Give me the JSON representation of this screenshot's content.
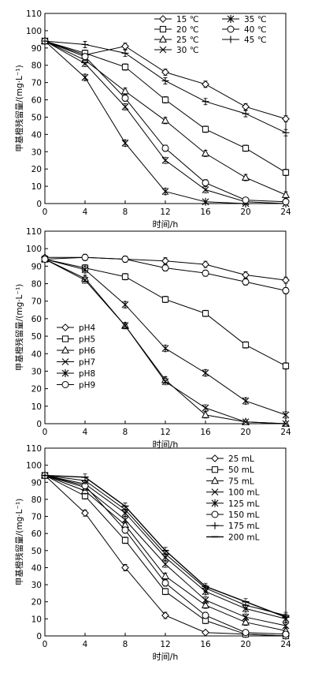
{
  "chart_data": [
    {
      "type": "line",
      "xlabel": "时间/h",
      "ylabel": "甲基橙残留量/(mg·L⁻¹)",
      "xlim": [
        0,
        24
      ],
      "ylim": [
        0,
        110
      ],
      "xticks": [
        "0",
        "4",
        "8",
        "12",
        "16",
        "20",
        "24"
      ],
      "yticks": [
        "0",
        "10",
        "20",
        "30",
        "40",
        "50",
        "60",
        "70",
        "80",
        "90",
        "100",
        "110"
      ],
      "x": [
        0,
        4,
        8,
        12,
        16,
        20,
        24
      ],
      "legend_position": "top-right",
      "legend_columns": 2,
      "series": [
        {
          "name": "15 ℃",
          "marker": "diamond",
          "values": [
            94,
            86,
            91,
            76,
            69,
            56,
            49
          ]
        },
        {
          "name": "20 ℃",
          "marker": "square",
          "values": [
            94,
            87,
            79,
            60,
            43,
            32,
            18
          ]
        },
        {
          "name": "25 ℃",
          "marker": "triangle",
          "values": [
            94,
            83,
            65,
            48,
            29,
            15,
            5
          ]
        },
        {
          "name": "30 ℃",
          "marker": "x",
          "values": [
            94,
            81,
            56,
            25,
            8,
            1,
            0
          ]
        },
        {
          "name": "35 ℃",
          "marker": "asterisk",
          "values": [
            94,
            73,
            35,
            7,
            1,
            0,
            0
          ]
        },
        {
          "name": "40 ℃",
          "marker": "circle",
          "values": [
            94,
            85,
            61,
            32,
            12,
            2,
            1
          ]
        },
        {
          "name": "45 ℃",
          "marker": "plus",
          "values": [
            94,
            92,
            87,
            71,
            59,
            52,
            41
          ]
        }
      ]
    },
    {
      "type": "line",
      "xlabel": "时间/h",
      "ylabel": "甲基橙残留量/(mg·L⁻¹)",
      "xlim": [
        0,
        24
      ],
      "ylim": [
        0,
        110
      ],
      "xticks": [
        "0",
        "4",
        "8",
        "12",
        "16",
        "20",
        "24"
      ],
      "yticks": [
        "0",
        "10",
        "20",
        "30",
        "40",
        "50",
        "60",
        "70",
        "80",
        "90",
        "100",
        "110"
      ],
      "x": [
        0,
        4,
        8,
        12,
        16,
        20,
        24
      ],
      "legend_position": "bottom-left",
      "legend_columns": 1,
      "series": [
        {
          "name": "pH4",
          "marker": "diamond",
          "values": [
            95,
            95,
            94,
            93,
            91,
            85,
            82
          ]
        },
        {
          "name": "pH5",
          "marker": "square",
          "values": [
            94,
            89,
            84,
            71,
            63,
            45,
            33
          ]
        },
        {
          "name": "pH6",
          "marker": "triangle",
          "values": [
            94,
            83,
            56,
            25,
            5,
            1,
            0
          ]
        },
        {
          "name": "pH7",
          "marker": "x",
          "values": [
            94,
            82,
            56,
            24,
            9,
            1,
            0
          ]
        },
        {
          "name": "pH8",
          "marker": "asterisk",
          "values": [
            94,
            88,
            68,
            43,
            29,
            13,
            5
          ]
        },
        {
          "name": "pH9",
          "marker": "circle",
          "values": [
            94,
            95,
            94,
            89,
            86,
            81,
            76
          ]
        }
      ]
    },
    {
      "type": "line",
      "xlabel": "时间/h",
      "ylabel": "甲基橙残留量/(mg·L⁻¹)",
      "xlim": [
        0,
        24
      ],
      "ylim": [
        0,
        110
      ],
      "xticks": [
        "0",
        "4",
        "8",
        "12",
        "16",
        "20",
        "24"
      ],
      "yticks": [
        "0",
        "10",
        "20",
        "30",
        "40",
        "50",
        "60",
        "70",
        "80",
        "90",
        "100",
        "110"
      ],
      "x": [
        0,
        4,
        8,
        12,
        16,
        20,
        24
      ],
      "legend_position": "top-right",
      "legend_columns": 1,
      "series": [
        {
          "name": "25 mL",
          "marker": "diamond",
          "values": [
            94,
            72,
            40,
            12,
            2,
            1,
            0
          ]
        },
        {
          "name": "50 mL",
          "marker": "square",
          "values": [
            94,
            82,
            56,
            26,
            9,
            1,
            0
          ]
        },
        {
          "name": "75 mL",
          "marker": "triangle",
          "values": [
            94,
            85,
            65,
            35,
            18,
            8,
            3
          ]
        },
        {
          "name": "100 mL",
          "marker": "x",
          "values": [
            94,
            87,
            68,
            42,
            21,
            11,
            6
          ]
        },
        {
          "name": "125 mL",
          "marker": "asterisk",
          "values": [
            94,
            89,
            72,
            46,
            26,
            16,
            10
          ]
        },
        {
          "name": "150 mL",
          "marker": "circle",
          "values": [
            94,
            88,
            62,
            31,
            12,
            2,
            1
          ]
        },
        {
          "name": "175 mL",
          "marker": "plus",
          "values": [
            94,
            91,
            74,
            48,
            28,
            18,
            12
          ]
        },
        {
          "name": "200 mL",
          "marker": "line",
          "values": [
            94,
            93,
            76,
            50,
            29,
            20,
            11
          ]
        }
      ]
    }
  ]
}
